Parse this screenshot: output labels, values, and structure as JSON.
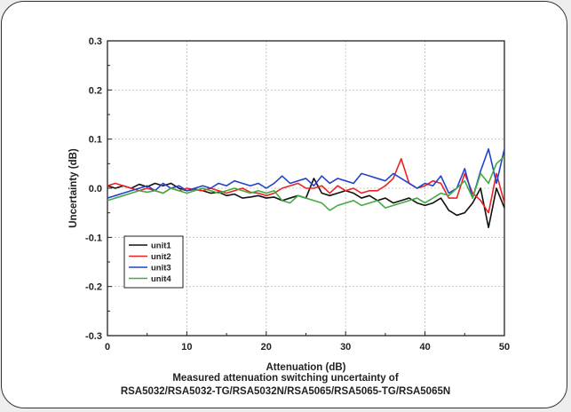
{
  "chart_data": {
    "type": "line",
    "title": "",
    "xlabel": "Attenuation (dB)",
    "ylabel": "Uncertainty (dB)",
    "xlim": [
      0,
      50
    ],
    "ylim": [
      -0.3,
      0.3
    ],
    "x_ticks": [
      0,
      10,
      20,
      30,
      40,
      50
    ],
    "y_ticks": [
      0.3,
      0.2,
      0.1,
      0.0,
      -0.1,
      -0.2,
      -0.3
    ],
    "x_tick_labels": [
      "0",
      "10",
      "20",
      "30",
      "40",
      "50"
    ],
    "y_tick_labels": [
      "0.3",
      "0.2",
      "0.1",
      "0.0",
      "-0.1",
      "-0.2",
      "-0.3"
    ],
    "grid": true,
    "legend_position": "lower-left",
    "series": [
      {
        "name": "unit1",
        "color": "#111111",
        "x": [
          0,
          1,
          2,
          3,
          4,
          5,
          6,
          7,
          8,
          9,
          10,
          11,
          12,
          13,
          14,
          15,
          16,
          17,
          18,
          19,
          20,
          21,
          22,
          23,
          24,
          25,
          26,
          27,
          28,
          29,
          30,
          31,
          32,
          33,
          34,
          35,
          36,
          37,
          38,
          39,
          40,
          41,
          42,
          43,
          44,
          45,
          46,
          47,
          48,
          49,
          50
        ],
        "values": [
          0.005,
          0.0,
          0.005,
          0.0,
          0.008,
          0.003,
          0.01,
          0.005,
          0.01,
          0.0,
          -0.005,
          -0.002,
          -0.005,
          -0.01,
          -0.008,
          -0.015,
          -0.012,
          -0.02,
          -0.018,
          -0.015,
          -0.02,
          -0.018,
          -0.025,
          -0.02,
          -0.015,
          -0.02,
          0.02,
          -0.01,
          -0.015,
          -0.01,
          -0.005,
          -0.01,
          -0.02,
          -0.015,
          -0.025,
          -0.02,
          -0.03,
          -0.025,
          -0.02,
          -0.03,
          -0.035,
          -0.03,
          -0.02,
          -0.045,
          -0.055,
          -0.05,
          -0.03,
          0.0,
          -0.08,
          0.0,
          -0.04
        ]
      },
      {
        "name": "unit2",
        "color": "#ee2222",
        "x": [
          0,
          1,
          2,
          3,
          4,
          5,
          6,
          7,
          8,
          9,
          10,
          11,
          12,
          13,
          14,
          15,
          16,
          17,
          18,
          19,
          20,
          21,
          22,
          23,
          24,
          25,
          26,
          27,
          28,
          29,
          30,
          31,
          32,
          33,
          34,
          35,
          36,
          37,
          38,
          39,
          40,
          41,
          42,
          43,
          44,
          45,
          46,
          47,
          48,
          49,
          50
        ],
        "values": [
          0.005,
          0.01,
          0.005,
          0.0,
          -0.005,
          0.0,
          -0.005,
          -0.01,
          0.0,
          -0.005,
          0.0,
          -0.003,
          -0.005,
          0.0,
          -0.005,
          -0.01,
          -0.005,
          0.0,
          -0.008,
          -0.01,
          -0.015,
          -0.01,
          0.0,
          0.005,
          0.01,
          0.0,
          0.0,
          0.005,
          -0.01,
          0.005,
          -0.005,
          0.0,
          -0.01,
          -0.005,
          -0.005,
          0.005,
          0.02,
          0.06,
          0.01,
          0.0,
          0.005,
          0.015,
          0.01,
          -0.02,
          -0.02,
          0.03,
          -0.01,
          -0.025,
          -0.05,
          0.03,
          -0.03
        ]
      },
      {
        "name": "unit3",
        "color": "#2244cc",
        "x": [
          0,
          1,
          2,
          3,
          4,
          5,
          6,
          7,
          8,
          9,
          10,
          11,
          12,
          13,
          14,
          15,
          16,
          17,
          18,
          19,
          20,
          21,
          22,
          23,
          24,
          25,
          26,
          27,
          28,
          29,
          30,
          31,
          32,
          33,
          34,
          35,
          36,
          37,
          38,
          39,
          40,
          41,
          42,
          43,
          44,
          45,
          46,
          47,
          48,
          49,
          50
        ],
        "values": [
          -0.02,
          -0.015,
          -0.01,
          -0.005,
          0.0,
          0.005,
          -0.005,
          0.01,
          0.0,
          0.005,
          -0.005,
          0.0,
          0.005,
          0.0,
          0.01,
          0.005,
          0.015,
          0.01,
          0.005,
          0.01,
          0.0,
          0.01,
          0.025,
          0.01,
          0.015,
          0.02,
          0.005,
          0.025,
          0.01,
          0.02,
          0.015,
          0.01,
          0.03,
          0.025,
          0.02,
          0.015,
          0.03,
          0.02,
          0.01,
          0.0,
          0.01,
          0.005,
          0.025,
          -0.01,
          0.0,
          0.04,
          -0.02,
          0.035,
          0.08,
          0.01,
          0.08
        ]
      },
      {
        "name": "unit4",
        "color": "#44aa44",
        "x": [
          0,
          1,
          2,
          3,
          4,
          5,
          6,
          7,
          8,
          9,
          10,
          11,
          12,
          13,
          14,
          15,
          16,
          17,
          18,
          19,
          20,
          21,
          22,
          23,
          24,
          25,
          26,
          27,
          28,
          29,
          30,
          31,
          32,
          33,
          34,
          35,
          36,
          37,
          38,
          39,
          40,
          41,
          42,
          43,
          44,
          45,
          46,
          47,
          48,
          49,
          50
        ],
        "values": [
          -0.025,
          -0.02,
          -0.015,
          -0.01,
          -0.005,
          -0.008,
          -0.005,
          -0.01,
          0.0,
          -0.005,
          -0.01,
          -0.005,
          0.0,
          -0.005,
          -0.01,
          -0.005,
          0.0,
          -0.005,
          -0.01,
          -0.005,
          -0.01,
          -0.005,
          -0.025,
          -0.03,
          -0.015,
          -0.02,
          -0.025,
          -0.03,
          -0.045,
          -0.035,
          -0.03,
          -0.025,
          -0.035,
          -0.03,
          -0.025,
          -0.04,
          -0.035,
          -0.03,
          -0.025,
          -0.02,
          -0.03,
          -0.02,
          -0.01,
          -0.015,
          0.0,
          0.015,
          -0.02,
          0.03,
          0.01,
          0.05,
          0.065
        ]
      }
    ]
  },
  "caption": {
    "line1": "Measured attenuation switching uncertainty of",
    "line2": "RSA5032/RSA5032-TG/RSA5032N/RSA5065/RSA5065-TG/RSA5065N"
  }
}
